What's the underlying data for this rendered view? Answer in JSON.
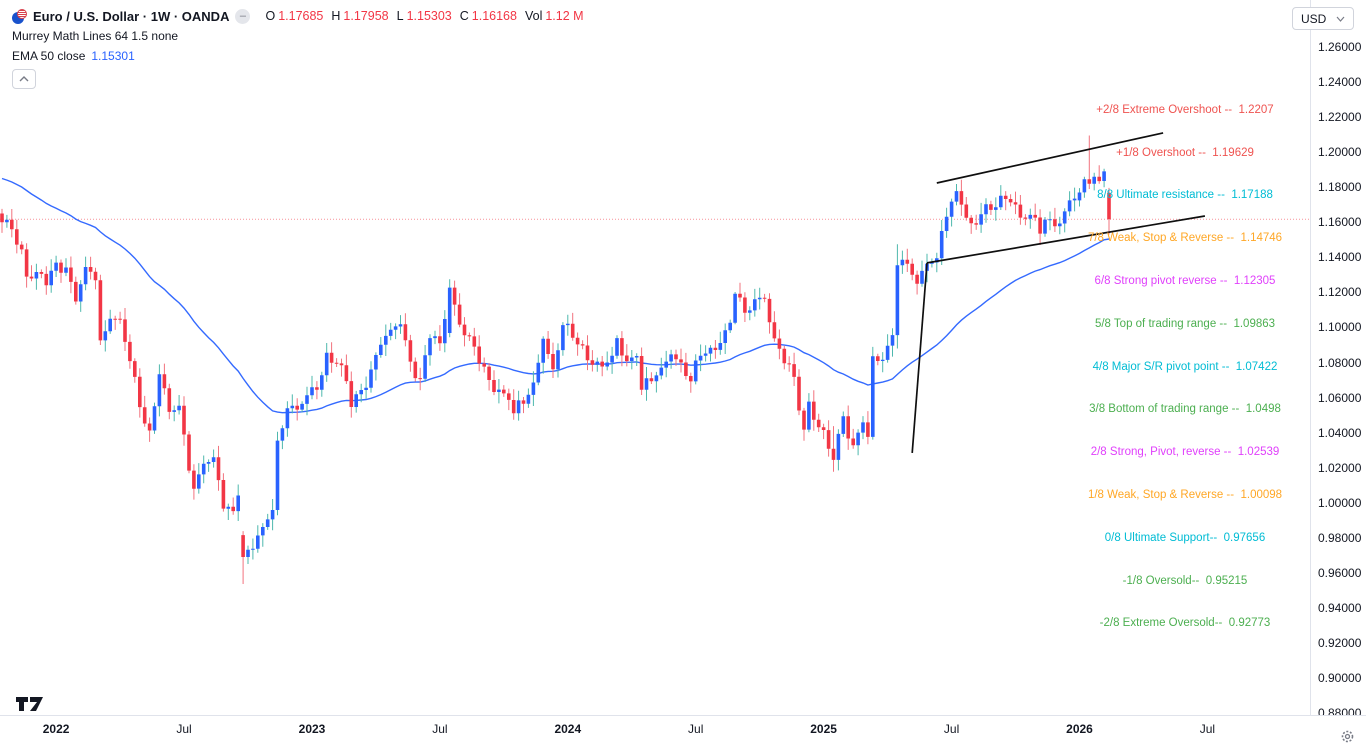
{
  "header": {
    "title": "Euro / U.S. Dollar · 1W · OANDA",
    "ohlc": {
      "o_key": "O",
      "o_val": "1.17685",
      "h_key": "H",
      "h_val": "1.17958",
      "l_key": "L",
      "l_val": "1.15303",
      "c_key": "C",
      "c_val": "1.16168",
      "vol_key": "Vol",
      "vol_val": "1.12 M"
    },
    "indicator_line1": "Murrey Math Lines 64 1.5 none",
    "indicator_line2_label": "EMA 50 close",
    "indicator_line2_value": "1.15301",
    "currency_selector": "USD"
  },
  "colors": {
    "up": "#2962ff",
    "upWick": "#4eb8ad",
    "down": "#f23645",
    "downWick": "#f2737e",
    "ema": "#2962ff",
    "accentRed": "#f23645",
    "grid": "#e0e3eb",
    "text": "#131722",
    "trendline": "#0f0f0f"
  },
  "price_axis": {
    "min": 0.88,
    "max": 1.26,
    "ticks": [
      "1.26000",
      "1.24000",
      "1.22000",
      "1.20000",
      "1.18000",
      "1.16000",
      "1.14000",
      "1.12000",
      "1.10000",
      "1.08000",
      "1.06000",
      "1.04000",
      "1.02000",
      "1.00000",
      "0.98000",
      "0.96000",
      "0.94000",
      "0.92000",
      "0.90000",
      "0.88000"
    ]
  },
  "time_axis": {
    "ticks": [
      {
        "label": "2022",
        "index": 11,
        "bold": true
      },
      {
        "label": "Jul",
        "index": 37,
        "bold": false
      },
      {
        "label": "2023",
        "index": 63,
        "bold": true
      },
      {
        "label": "Jul",
        "index": 89,
        "bold": false
      },
      {
        "label": "2024",
        "index": 115,
        "bold": true
      },
      {
        "label": "Jul",
        "index": 141,
        "bold": false
      },
      {
        "label": "2025",
        "index": 167,
        "bold": true
      },
      {
        "label": "Jul",
        "index": 193,
        "bold": false
      },
      {
        "label": "2026",
        "index": 219,
        "bold": true
      },
      {
        "label": "Jul",
        "index": 245,
        "bold": false
      }
    ]
  },
  "murrey_labels": [
    {
      "text": "+2/8 Extreme Overshoot --  1.2207",
      "price": 1.2207,
      "color": "#ef5350"
    },
    {
      "text": "+1/8 Overshoot --  1.19629",
      "price": 1.19629,
      "color": "#ef5350"
    },
    {
      "text": "8/8 Ultimate resistance --  1.17188",
      "price": 1.17188,
      "color": "#00bcd4"
    },
    {
      "text": "7/8 Weak, Stop & Reverse --  1.14746",
      "price": 1.14746,
      "color": "#ffa726"
    },
    {
      "text": "6/8 Strong pivot reverse --  1.12305",
      "price": 1.12305,
      "color": "#e040fb"
    },
    {
      "text": "5/8 Top of trading range --  1.09863",
      "price": 1.09863,
      "color": "#4caf50"
    },
    {
      "text": "4/8 Major S/R pivot point --  1.07422",
      "price": 1.07422,
      "color": "#00bcd4"
    },
    {
      "text": "3/8 Bottom of trading range --  1.0498",
      "price": 1.0498,
      "color": "#4caf50"
    },
    {
      "text": "2/8 Strong, Pivot, reverse --  1.02539",
      "price": 1.02539,
      "color": "#e040fb"
    },
    {
      "text": "1/8 Weak, Stop & Reverse --  1.00098",
      "price": 1.00098,
      "color": "#ffa726"
    },
    {
      "text": "0/8 Ultimate Support--  0.97656",
      "price": 0.97656,
      "color": "#00bcd4"
    },
    {
      "text": "-1/8 Oversold--  0.95215",
      "price": 0.95215,
      "color": "#4caf50"
    },
    {
      "text": "-2/8 Extreme Oversold--  0.92773",
      "price": 0.92773,
      "color": "#4caf50"
    }
  ],
  "chart_data": {
    "type": "candlestick",
    "title": "Euro / U.S. Dollar, 1W, OANDA",
    "pair": "EUR/USD",
    "timeframe": "1W",
    "visible_price_range": [
      0.88,
      1.26
    ],
    "bars": 226,
    "last_bar": {
      "open": 1.17685,
      "high": 1.17958,
      "low": 1.15303,
      "close": 1.16168,
      "volume": "1.12 M"
    },
    "current_price_line": 1.16168,
    "ema": {
      "period": 50,
      "seed": 1.186,
      "last_value": 1.15301
    },
    "close_anchors": [
      [
        0,
        1.16
      ],
      [
        2,
        1.156
      ],
      [
        4,
        1.1445
      ],
      [
        5,
        1.129
      ],
      [
        7,
        1.1316
      ],
      [
        9,
        1.124
      ],
      [
        11,
        1.137
      ],
      [
        13,
        1.1342
      ],
      [
        15,
        1.1148
      ],
      [
        17,
        1.1345
      ],
      [
        19,
        1.1269
      ],
      [
        20,
        1.0926
      ],
      [
        22,
        1.105
      ],
      [
        24,
        1.1046
      ],
      [
        26,
        1.0808
      ],
      [
        28,
        1.0545
      ],
      [
        30,
        1.0412
      ],
      [
        32,
        1.0733
      ],
      [
        34,
        1.0518
      ],
      [
        36,
        1.0553
      ],
      [
        38,
        1.0183
      ],
      [
        39,
        1.008
      ],
      [
        41,
        1.0222
      ],
      [
        43,
        1.0259
      ],
      [
        45,
        0.9966
      ],
      [
        47,
        0.9952
      ],
      [
        48,
        1.0041
      ],
      [
        49,
        0.969
      ],
      [
        51,
        0.9737
      ],
      [
        53,
        0.9861
      ],
      [
        55,
        0.9958
      ],
      [
        56,
        1.0354
      ],
      [
        58,
        1.0539
      ],
      [
        60,
        1.0531
      ],
      [
        62,
        1.0613
      ],
      [
        64,
        1.0645
      ],
      [
        66,
        1.0855
      ],
      [
        68,
        1.0795
      ],
      [
        70,
        1.0694
      ],
      [
        71,
        1.0546
      ],
      [
        73,
        1.0643
      ],
      [
        75,
        1.076
      ],
      [
        77,
        1.0901
      ],
      [
        79,
        1.0987
      ],
      [
        81,
        1.1018
      ],
      [
        83,
        1.0805
      ],
      [
        85,
        1.0707
      ],
      [
        87,
        1.0939
      ],
      [
        89,
        1.091
      ],
      [
        91,
        1.1227
      ],
      [
        93,
        1.1016
      ],
      [
        95,
        1.0949
      ],
      [
        97,
        1.0794
      ],
      [
        99,
        1.07
      ],
      [
        101,
        1.0645
      ],
      [
        103,
        1.0586
      ],
      [
        104,
        1.051
      ],
      [
        106,
        1.0565
      ],
      [
        108,
        1.0686
      ],
      [
        110,
        1.0935
      ],
      [
        112,
        1.0761
      ],
      [
        114,
        1.1013
      ],
      [
        116,
        1.0941
      ],
      [
        118,
        1.0897
      ],
      [
        120,
        1.0787
      ],
      [
        122,
        1.0777
      ],
      [
        124,
        1.0838
      ],
      [
        125,
        1.0939
      ],
      [
        127,
        1.0808
      ],
      [
        129,
        1.0837
      ],
      [
        130,
        1.0644
      ],
      [
        132,
        1.0693
      ],
      [
        134,
        1.0771
      ],
      [
        136,
        1.0846
      ],
      [
        138,
        1.08
      ],
      [
        140,
        1.0692
      ],
      [
        142,
        1.0838
      ],
      [
        144,
        1.0884
      ],
      [
        146,
        1.0911
      ],
      [
        148,
        1.1027
      ],
      [
        149,
        1.1192
      ],
      [
        151,
        1.1084
      ],
      [
        153,
        1.1161
      ],
      [
        155,
        1.1163
      ],
      [
        157,
        1.0937
      ],
      [
        159,
        1.0795
      ],
      [
        161,
        1.0718
      ],
      [
        163,
        1.0417
      ],
      [
        164,
        1.0577
      ],
      [
        166,
        1.043
      ],
      [
        168,
        1.0308
      ],
      [
        169,
        1.0244
      ],
      [
        171,
        1.0493
      ],
      [
        173,
        1.0328
      ],
      [
        175,
        1.0458
      ],
      [
        176,
        1.0375
      ],
      [
        177,
        1.0835
      ],
      [
        179,
        1.0815
      ],
      [
        181,
        1.0956
      ],
      [
        182,
        1.1355
      ],
      [
        184,
        1.1363
      ],
      [
        186,
        1.1249
      ],
      [
        188,
        1.1363
      ],
      [
        190,
        1.1395
      ],
      [
        191,
        1.155
      ],
      [
        193,
        1.1718
      ],
      [
        194,
        1.1778
      ],
      [
        196,
        1.1626
      ],
      [
        198,
        1.1587
      ],
      [
        200,
        1.1703
      ],
      [
        202,
        1.1686
      ],
      [
        204,
        1.1733
      ],
      [
        206,
        1.1701
      ],
      [
        208,
        1.162
      ],
      [
        210,
        1.1627
      ],
      [
        211,
        1.1535
      ],
      [
        213,
        1.1617
      ],
      [
        215,
        1.1593
      ],
      [
        217,
        1.1725
      ],
      [
        219,
        1.177
      ],
      [
        220,
        1.1845
      ],
      [
        221,
        1.182
      ],
      [
        222,
        1.186
      ],
      [
        223,
        1.1835
      ],
      [
        224,
        1.189
      ],
      [
        225,
        1.16168
      ]
    ],
    "explicit_candles": [
      [
        49,
        0.9815,
        0.9838,
        0.9536,
        0.969
      ],
      [
        91,
        1.0968,
        1.1275,
        1.0944,
        1.1227
      ],
      [
        149,
        1.1027,
        1.1202,
        1.1018,
        1.1192
      ],
      [
        169,
        1.0308,
        1.0437,
        1.0177,
        1.0244
      ],
      [
        177,
        1.0375,
        1.0889,
        1.036,
        1.0835
      ],
      [
        182,
        1.0956,
        1.1474,
        1.088,
        1.1355
      ],
      [
        219,
        1.1725,
        1.1795,
        1.169,
        1.177
      ],
      [
        220,
        1.177,
        1.186,
        1.174,
        1.1845
      ],
      [
        221,
        1.1845,
        1.2095,
        1.179,
        1.182
      ],
      [
        222,
        1.182,
        1.1882,
        1.1782,
        1.186
      ],
      [
        223,
        1.186,
        1.1925,
        1.182,
        1.1835
      ],
      [
        224,
        1.1835,
        1.1905,
        1.18,
        1.189
      ],
      [
        225,
        1.17685,
        1.17958,
        1.15303,
        1.16168
      ]
    ],
    "trendlines": [
      {
        "i1": 190,
        "p1": 1.1824,
        "i2": 236,
        "p2": 1.211
      },
      {
        "i1": 188,
        "p1": 1.1368,
        "i2": 244.5,
        "p2": 1.1636
      },
      {
        "i1": 185,
        "p1": 1.0284,
        "i2": 188,
        "p2": 1.1368
      }
    ]
  }
}
